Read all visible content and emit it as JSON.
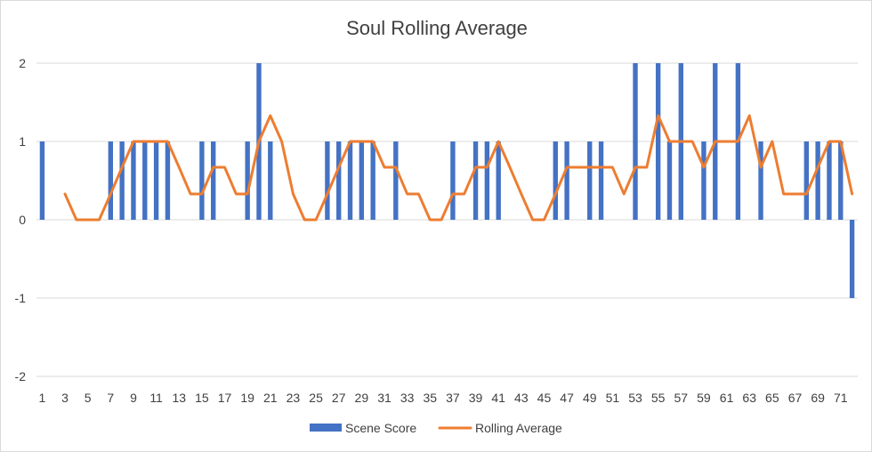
{
  "chart_data": {
    "type": "bar",
    "title": "Soul Rolling Average",
    "xlabel": "",
    "ylabel": "",
    "ylim": [
      -2,
      2
    ],
    "yticks": [
      "2",
      "1",
      "0",
      "-1",
      "-2"
    ],
    "xtick_labels": [
      "1",
      "3",
      "5",
      "7",
      "9",
      "11",
      "13",
      "15",
      "17",
      "19",
      "21",
      "23",
      "25",
      "27",
      "29",
      "31",
      "33",
      "35",
      "37",
      "39",
      "41",
      "43",
      "45",
      "47",
      "49",
      "51",
      "53",
      "55",
      "57",
      "59",
      "61",
      "63",
      "65",
      "67",
      "69",
      "71"
    ],
    "x": [
      1,
      2,
      3,
      4,
      5,
      6,
      7,
      8,
      9,
      10,
      11,
      12,
      13,
      14,
      15,
      16,
      17,
      18,
      19,
      20,
      21,
      22,
      23,
      24,
      25,
      26,
      27,
      28,
      29,
      30,
      31,
      32,
      33,
      34,
      35,
      36,
      37,
      38,
      39,
      40,
      41,
      42,
      43,
      44,
      45,
      46,
      47,
      48,
      49,
      50,
      51,
      52,
      53,
      54,
      55,
      56,
      57,
      58,
      59,
      60,
      61,
      62,
      63,
      64,
      65,
      66,
      67,
      68,
      69,
      70,
      71,
      72
    ],
    "grid": true,
    "legend_position": "bottom",
    "series": [
      {
        "name": "Scene Score",
        "type": "bar",
        "color": "#4472C4",
        "values": [
          1,
          0,
          0,
          0,
          0,
          0,
          1,
          1,
          1,
          1,
          1,
          1,
          0,
          0,
          1,
          1,
          0,
          0,
          1,
          2,
          1,
          0,
          0,
          0,
          0,
          1,
          1,
          1,
          1,
          1,
          0,
          1,
          0,
          0,
          0,
          0,
          1,
          0,
          1,
          1,
          1,
          0,
          0,
          0,
          0,
          1,
          1,
          0,
          1,
          1,
          0,
          0,
          2,
          0,
          2,
          1,
          2,
          0,
          1,
          2,
          0,
          2,
          0,
          1,
          0,
          0,
          0,
          1,
          1,
          1,
          1,
          -1
        ]
      },
      {
        "name": "Rolling Average",
        "type": "line",
        "color": "#ED7D31",
        "values": [
          null,
          null,
          0.33,
          0,
          0,
          0,
          0.33,
          0.67,
          1,
          1,
          1,
          1,
          0.67,
          0.33,
          0.33,
          0.67,
          0.67,
          0.33,
          0.33,
          1,
          1.33,
          1,
          0.33,
          0,
          0,
          0.33,
          0.67,
          1,
          1,
          1,
          0.67,
          0.67,
          0.33,
          0.33,
          0,
          0,
          0.33,
          0.33,
          0.67,
          0.67,
          1,
          0.67,
          0.33,
          0,
          0,
          0.33,
          0.67,
          0.67,
          0.67,
          0.67,
          0.67,
          0.33,
          0.67,
          0.67,
          1.33,
          1,
          1,
          1,
          0.67,
          1,
          1,
          1,
          1.33,
          0.67,
          1,
          0.33,
          0.33,
          0.33,
          0.67,
          1,
          1,
          0.33
        ]
      }
    ]
  }
}
